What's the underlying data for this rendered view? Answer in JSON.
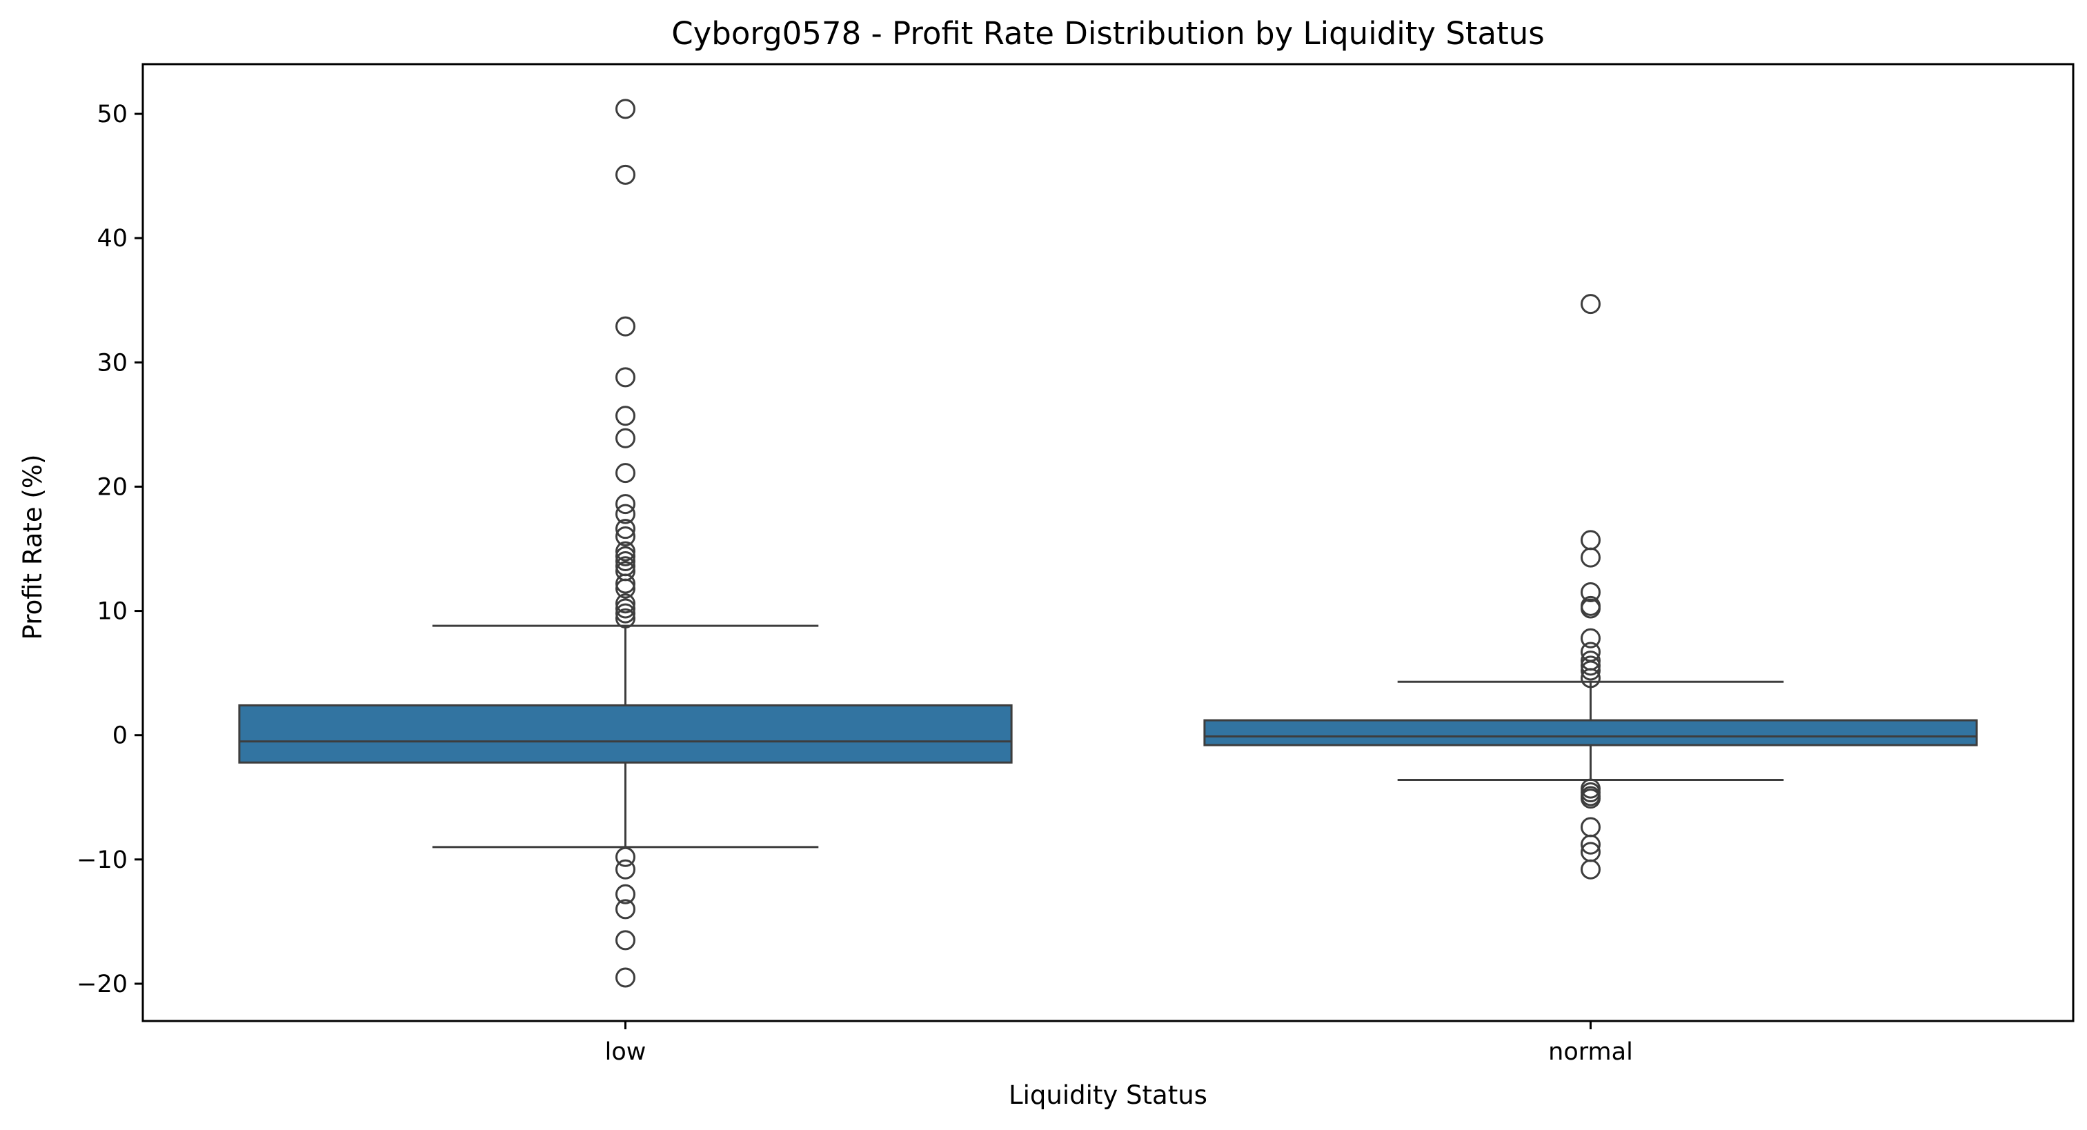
{
  "chart_data": {
    "type": "box",
    "title": "Cyborg0578 - Profit Rate Distribution by Liquidity Status",
    "xlabel": "Liquidity Status",
    "ylabel": "Profit Rate (%)",
    "categories": [
      "low",
      "normal"
    ],
    "ylim": [
      -23,
      54
    ],
    "yticks": [
      -20,
      -10,
      0,
      10,
      20,
      30,
      40,
      50
    ],
    "ytick_labels": [
      "−20",
      "−10",
      "0",
      "10",
      "20",
      "30",
      "40",
      "50"
    ],
    "grid": false,
    "box_color": "#3274a1",
    "edge_color": "#3d3d3d",
    "boxes": [
      {
        "category": "low",
        "whisker_low": -9.0,
        "q1": -2.2,
        "median": -0.5,
        "q3": 2.4,
        "whisker_high": 8.8,
        "outliers": [
          50.4,
          45.1,
          32.9,
          28.8,
          25.7,
          23.9,
          21.1,
          18.6,
          17.8,
          16.6,
          16.0,
          14.8,
          14.4,
          14.0,
          13.6,
          13.2,
          12.2,
          11.8,
          10.6,
          10.2,
          9.8,
          9.4,
          -9.8,
          -10.8,
          -12.8,
          -14.0,
          -16.5,
          -19.5
        ]
      },
      {
        "category": "normal",
        "whisker_low": -3.6,
        "q1": -0.8,
        "median": -0.1,
        "q3": 1.2,
        "whisker_high": 4.3,
        "outliers": [
          34.7,
          15.7,
          14.3,
          11.5,
          10.4,
          10.2,
          7.8,
          6.7,
          6.0,
          5.6,
          5.2,
          4.6,
          -4.3,
          -4.6,
          -4.9,
          -5.1,
          -7.4,
          -8.8,
          -9.4,
          -10.8
        ]
      }
    ]
  }
}
